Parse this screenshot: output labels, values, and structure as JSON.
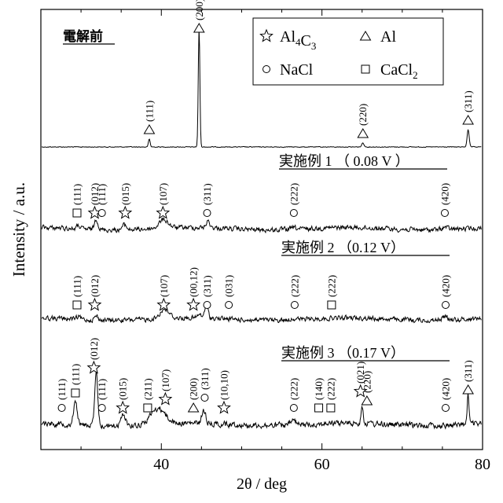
{
  "chart_data": {
    "type": "line",
    "xlabel": "2θ / deg",
    "ylabel": "Intensity / a.u.",
    "xlim": [
      25,
      80
    ],
    "xticks": [
      40,
      60,
      80
    ],
    "legend": {
      "position": "top-right",
      "entries": [
        {
          "marker": "star",
          "label_main": "Al",
          "label_sub1": "4",
          "label_mid": "C",
          "label_sub2": "3"
        },
        {
          "marker": "triangle",
          "label_main": "Al"
        },
        {
          "marker": "circle",
          "label_main": "NaCl"
        },
        {
          "marker": "square",
          "label_main": "CaCl",
          "label_sub1": "2"
        }
      ]
    },
    "series": [
      {
        "name": "電解前",
        "base": 187,
        "noise": 0.4,
        "peaks": [
          {
            "x": 38.5,
            "h": 10,
            "w": 0.15
          },
          {
            "x": 44.7,
            "h": 152,
            "w": 0.14
          },
          {
            "x": 65.1,
            "h": 5,
            "w": 0.2
          },
          {
            "x": 78.2,
            "h": 22,
            "w": 0.18
          }
        ],
        "markers": [
          {
            "type": "triangle",
            "x": 38.5,
            "label": "(111)"
          },
          {
            "type": "triangle",
            "x": 44.7,
            "label": "(200)"
          },
          {
            "type": "triangle",
            "x": 65.1,
            "label": "(220)"
          },
          {
            "type": "triangle",
            "x": 78.2,
            "label": "(311)"
          }
        ]
      },
      {
        "name": "実施例 1 （ 0.08 V ）",
        "base": 291,
        "noise": 2.6,
        "peaks": [
          {
            "x": 29.7,
            "h": 4,
            "w": 0.3
          },
          {
            "x": 31.9,
            "h": 14,
            "w": 0.3
          },
          {
            "x": 35.4,
            "h": 6,
            "w": 0.4
          },
          {
            "x": 40.3,
            "h": 11,
            "w": 0.8
          },
          {
            "x": 45.8,
            "h": 8,
            "w": 0.35
          },
          {
            "x": 56.5,
            "h": 2,
            "w": 0.5
          },
          {
            "x": 75.3,
            "h": 3,
            "w": 0.5
          }
        ],
        "markers": [
          {
            "type": "square",
            "x": 29.5,
            "label": "(111)"
          },
          {
            "type": "star",
            "x": 31.7,
            "label": "(012)"
          },
          {
            "type": "circle",
            "x": 32.6,
            "label": "(111)"
          },
          {
            "type": "star",
            "x": 35.5,
            "label": "(015)"
          },
          {
            "type": "star",
            "x": 40.2,
            "label": "(107)"
          },
          {
            "type": "circle",
            "x": 45.7,
            "label": "(311)"
          },
          {
            "type": "circle",
            "x": 56.5,
            "label": "(222)"
          },
          {
            "type": "circle",
            "x": 75.3,
            "label": "(420)"
          }
        ]
      },
      {
        "name": "実施例 2 （0.12 V）",
        "base": 406,
        "noise": 2.6,
        "peaks": [
          {
            "x": 29.7,
            "h": 3,
            "w": 0.3
          },
          {
            "x": 31.9,
            "h": 5,
            "w": 0.3
          },
          {
            "x": 40.4,
            "h": 12,
            "w": 0.8
          },
          {
            "x": 44.7,
            "h": 4,
            "w": 0.3
          },
          {
            "x": 45.6,
            "h": 17,
            "w": 0.3
          },
          {
            "x": 56.5,
            "h": 2,
            "w": 0.5
          },
          {
            "x": 75.3,
            "h": 4,
            "w": 0.5
          }
        ],
        "markers": [
          {
            "type": "square",
            "x": 29.5,
            "label": "(111)"
          },
          {
            "type": "star",
            "x": 31.7,
            "label": "(012)"
          },
          {
            "type": "star",
            "x": 40.3,
            "label": "(107)"
          },
          {
            "type": "star",
            "x": 44.0,
            "label": "(00,12)"
          },
          {
            "type": "circle",
            "x": 45.7,
            "label": "(311)"
          },
          {
            "type": "circle",
            "x": 48.4,
            "label": "(031)"
          },
          {
            "type": "circle",
            "x": 56.6,
            "label": "(222)"
          },
          {
            "type": "square",
            "x": 61.2,
            "label": "(222)"
          },
          {
            "type": "circle",
            "x": 75.4,
            "label": "(420)"
          }
        ]
      },
      {
        "name": "実施例 3 （0.17 V）",
        "base": 540,
        "noise": 3.2,
        "peaks": [
          {
            "x": 29.3,
            "h": 32,
            "w": 0.3
          },
          {
            "x": 31.9,
            "h": 66,
            "w": 0.26
          },
          {
            "x": 35.3,
            "h": 14,
            "w": 0.4
          },
          {
            "x": 39.6,
            "h": 20,
            "w": 1.3
          },
          {
            "x": 45.3,
            "h": 16,
            "w": 0.35
          },
          {
            "x": 56.4,
            "h": 6,
            "w": 0.4
          },
          {
            "x": 65.0,
            "h": 22,
            "w": 0.2
          },
          {
            "x": 78.2,
            "h": 38,
            "w": 0.16
          }
        ],
        "markers": [
          {
            "type": "circle",
            "x": 27.6,
            "label": "(111)"
          },
          {
            "type": "square",
            "x": 29.3,
            "label": "(111)"
          },
          {
            "type": "star",
            "x": 31.6,
            "label": "(012)"
          },
          {
            "type": "circle",
            "x": 32.6,
            "label": "(111)"
          },
          {
            "type": "star",
            "x": 35.2,
            "label": "(015)"
          },
          {
            "type": "square",
            "x": 38.3,
            "label": "(211)"
          },
          {
            "type": "star",
            "x": 40.5,
            "label": "(107)"
          },
          {
            "type": "triangle",
            "x": 44.0,
            "label": "(200)"
          },
          {
            "type": "circle",
            "x": 45.4,
            "label": "(311)"
          },
          {
            "type": "star",
            "x": 47.8,
            "label": "(10,10)"
          },
          {
            "type": "circle",
            "x": 56.5,
            "label": "(222)"
          },
          {
            "type": "square",
            "x": 59.6,
            "label": "(140)"
          },
          {
            "type": "square",
            "x": 61.1,
            "label": "(222)"
          },
          {
            "type": "star",
            "x": 64.8,
            "label": "(021)"
          },
          {
            "type": "triangle",
            "x": 65.6,
            "label": "(220)"
          },
          {
            "type": "circle",
            "x": 75.4,
            "label": "(420)"
          },
          {
            "type": "triangle",
            "x": 78.2,
            "label": "(311)"
          }
        ]
      }
    ]
  }
}
